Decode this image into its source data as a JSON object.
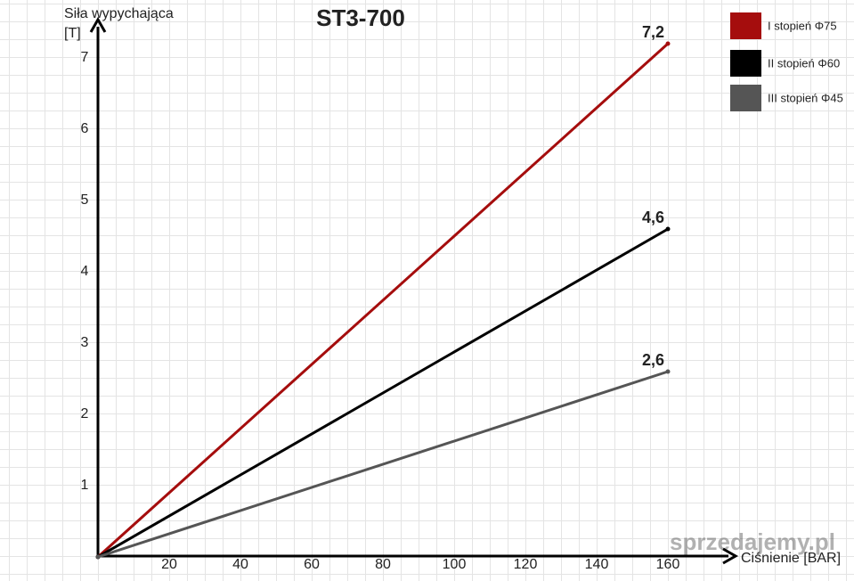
{
  "chart_data": {
    "type": "line",
    "title": "ST3-700",
    "ylabel": [
      "Siła wypychająca",
      "[T]"
    ],
    "xlabel": "Ciśnienie [BAR]",
    "x": [
      0,
      160
    ],
    "series": [
      {
        "name": "I stopień Φ75",
        "color": "#a50d0d",
        "values": [
          0,
          7.2
        ],
        "value_labels": [
          null,
          "7,2"
        ]
      },
      {
        "name": "II stopień Φ60",
        "color": "#000000",
        "values": [
          0,
          4.6
        ],
        "value_labels": [
          null,
          "4,6"
        ]
      },
      {
        "name": "III stopień Φ45",
        "color": "#555555",
        "values": [
          0,
          2.6
        ],
        "value_labels": [
          null,
          "2,6"
        ]
      }
    ],
    "xlim": [
      0,
      178
    ],
    "xticks": [
      20,
      40,
      60,
      80,
      100,
      120,
      140,
      160
    ],
    "ylim": [
      0,
      7.45
    ],
    "yticks": [
      1,
      2,
      3,
      4,
      5,
      6,
      7
    ],
    "legend": "top-right",
    "watermark": "sprzedajemy.pl"
  }
}
